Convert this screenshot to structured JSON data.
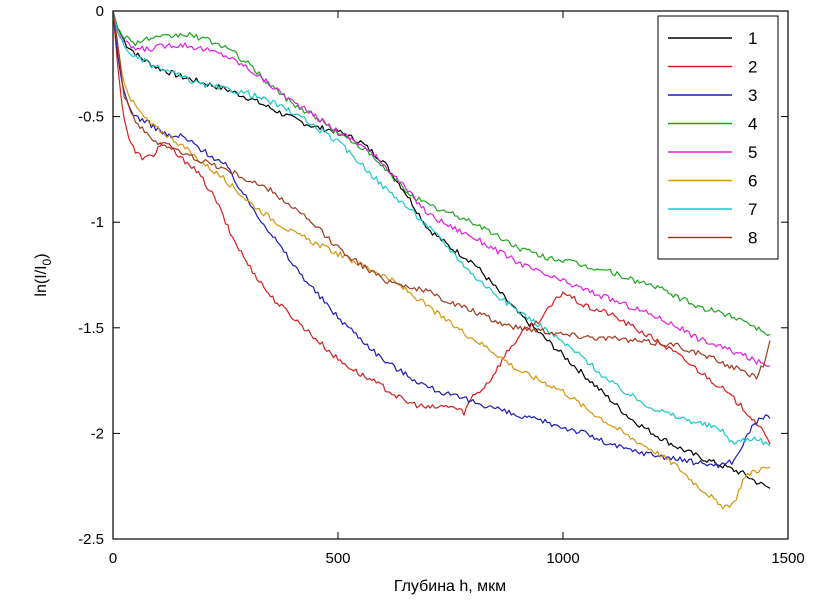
{
  "chart_data": {
    "type": "line",
    "xlabel": "Глубина h, мкм",
    "ylabel_main": "ln(I/I",
    "ylabel_sub": "0",
    "ylabel_close": ")",
    "xlim": [
      0,
      1500
    ],
    "ylim": [
      -2.5,
      0
    ],
    "xticks": [
      0,
      500,
      1000,
      1500
    ],
    "xtick_labels": [
      "0",
      "500",
      "1000",
      "1500"
    ],
    "yticks": [
      0,
      -0.5,
      -1,
      -1.5,
      -2,
      -2.5
    ],
    "ytick_labels": [
      "0",
      "-0.5",
      "-1",
      "-1.5",
      "-2",
      "-2.5"
    ],
    "grid": false,
    "legend_position": "top-right",
    "series": [
      {
        "name": "1",
        "color": "#000000",
        "x": [
          0,
          10,
          30,
          60,
          100,
          150,
          200,
          250,
          300,
          350,
          400,
          450,
          500,
          550,
          600,
          650,
          700,
          750,
          800,
          850,
          900,
          950,
          1000,
          1050,
          1100,
          1150,
          1200,
          1250,
          1300,
          1350,
          1400,
          1430,
          1460
        ],
        "y": [
          0,
          -0.08,
          -0.16,
          -0.22,
          -0.27,
          -0.31,
          -0.34,
          -0.37,
          -0.41,
          -0.46,
          -0.51,
          -0.55,
          -0.57,
          -0.62,
          -0.71,
          -0.86,
          -1.03,
          -1.12,
          -1.19,
          -1.31,
          -1.43,
          -1.53,
          -1.63,
          -1.73,
          -1.83,
          -1.93,
          -2.0,
          -2.06,
          -2.11,
          -2.15,
          -2.19,
          -2.23,
          -2.26
        ]
      },
      {
        "name": "2",
        "color": "#d42020",
        "x": [
          0,
          10,
          20,
          35,
          50,
          70,
          90,
          110,
          130,
          150,
          170,
          200,
          230,
          260,
          300,
          350,
          400,
          450,
          500,
          550,
          600,
          650,
          700,
          750,
          780,
          800,
          820,
          840,
          860,
          880,
          900,
          920,
          950,
          980,
          1000,
          1050,
          1100,
          1150,
          1200,
          1250,
          1300,
          1350,
          1400,
          1430,
          1460
        ],
        "y": [
          0,
          -0.25,
          -0.45,
          -0.6,
          -0.67,
          -0.7,
          -0.68,
          -0.62,
          -0.65,
          -0.7,
          -0.72,
          -0.8,
          -0.9,
          -1.05,
          -1.2,
          -1.35,
          -1.45,
          -1.55,
          -1.65,
          -1.72,
          -1.78,
          -1.85,
          -1.88,
          -1.87,
          -1.9,
          -1.82,
          -1.79,
          -1.74,
          -1.67,
          -1.6,
          -1.55,
          -1.5,
          -1.46,
          -1.38,
          -1.33,
          -1.4,
          -1.43,
          -1.49,
          -1.55,
          -1.62,
          -1.7,
          -1.78,
          -1.88,
          -1.95,
          -2.05
        ]
      },
      {
        "name": "3",
        "color": "#1c1cb4",
        "x": [
          0,
          10,
          20,
          35,
          50,
          70,
          100,
          130,
          150,
          180,
          200,
          250,
          300,
          350,
          400,
          450,
          500,
          550,
          600,
          650,
          700,
          750,
          800,
          850,
          900,
          950,
          1000,
          1050,
          1100,
          1150,
          1200,
          1250,
          1300,
          1350,
          1380,
          1400,
          1420,
          1440,
          1460
        ],
        "y": [
          0,
          -0.2,
          -0.35,
          -0.45,
          -0.5,
          -0.52,
          -0.56,
          -0.6,
          -0.59,
          -0.63,
          -0.66,
          -0.73,
          -0.9,
          -1.05,
          -1.2,
          -1.33,
          -1.45,
          -1.55,
          -1.65,
          -1.72,
          -1.78,
          -1.82,
          -1.85,
          -1.88,
          -1.92,
          -1.94,
          -1.97,
          -2.0,
          -2.05,
          -2.08,
          -2.1,
          -2.12,
          -2.14,
          -2.15,
          -2.13,
          -2.05,
          -1.97,
          -1.92,
          -1.93
        ]
      },
      {
        "name": "4",
        "color": "#1ea51e",
        "x": [
          0,
          10,
          25,
          50,
          80,
          100,
          130,
          160,
          200,
          250,
          300,
          350,
          400,
          450,
          500,
          550,
          600,
          650,
          700,
          750,
          800,
          850,
          900,
          950,
          1000,
          1050,
          1100,
          1150,
          1200,
          1250,
          1300,
          1350,
          1400,
          1430,
          1460
        ],
        "y": [
          0,
          -0.08,
          -0.12,
          -0.15,
          -0.13,
          -0.13,
          -0.12,
          -0.11,
          -0.13,
          -0.17,
          -0.25,
          -0.35,
          -0.44,
          -0.5,
          -0.58,
          -0.64,
          -0.74,
          -0.85,
          -0.92,
          -0.96,
          -1.0,
          -1.06,
          -1.12,
          -1.16,
          -1.18,
          -1.21,
          -1.23,
          -1.27,
          -1.3,
          -1.35,
          -1.4,
          -1.43,
          -1.46,
          -1.5,
          -1.53
        ]
      },
      {
        "name": "5",
        "color": "#e020e0",
        "x": [
          0,
          10,
          25,
          50,
          80,
          100,
          130,
          160,
          200,
          250,
          300,
          350,
          400,
          450,
          500,
          550,
          600,
          650,
          700,
          750,
          800,
          850,
          900,
          950,
          1000,
          1050,
          1100,
          1150,
          1200,
          1250,
          1300,
          1350,
          1400,
          1430,
          1460
        ],
        "y": [
          0,
          -0.1,
          -0.15,
          -0.18,
          -0.18,
          -0.17,
          -0.16,
          -0.16,
          -0.18,
          -0.21,
          -0.27,
          -0.35,
          -0.43,
          -0.5,
          -0.57,
          -0.63,
          -0.72,
          -0.84,
          -0.96,
          -1.02,
          -1.07,
          -1.13,
          -1.19,
          -1.24,
          -1.28,
          -1.32,
          -1.36,
          -1.4,
          -1.44,
          -1.49,
          -1.55,
          -1.59,
          -1.63,
          -1.66,
          -1.68
        ]
      },
      {
        "name": "6",
        "color": "#d4960f",
        "x": [
          0,
          10,
          20,
          40,
          60,
          80,
          100,
          130,
          160,
          200,
          250,
          300,
          350,
          400,
          450,
          500,
          550,
          600,
          650,
          700,
          750,
          800,
          850,
          900,
          950,
          1000,
          1050,
          1100,
          1150,
          1200,
          1250,
          1300,
          1330,
          1350,
          1380,
          1400,
          1420,
          1440,
          1460
        ],
        "y": [
          0,
          -0.15,
          -0.3,
          -0.42,
          -0.48,
          -0.53,
          -0.56,
          -0.6,
          -0.65,
          -0.72,
          -0.8,
          -0.9,
          -0.98,
          -1.05,
          -1.1,
          -1.15,
          -1.2,
          -1.25,
          -1.32,
          -1.4,
          -1.48,
          -1.55,
          -1.62,
          -1.7,
          -1.75,
          -1.8,
          -1.88,
          -1.95,
          -2.02,
          -2.08,
          -2.15,
          -2.25,
          -2.3,
          -2.35,
          -2.33,
          -2.22,
          -2.18,
          -2.17,
          -2.16
        ]
      },
      {
        "name": "7",
        "color": "#1cc8c8",
        "x": [
          0,
          10,
          25,
          50,
          80,
          100,
          130,
          160,
          200,
          250,
          300,
          350,
          400,
          450,
          500,
          550,
          600,
          650,
          700,
          750,
          800,
          850,
          900,
          950,
          1000,
          1050,
          1100,
          1150,
          1200,
          1250,
          1300,
          1350,
          1380,
          1400,
          1430,
          1460
        ],
        "y": [
          0,
          -0.1,
          -0.17,
          -0.22,
          -0.25,
          -0.27,
          -0.29,
          -0.32,
          -0.35,
          -0.37,
          -0.39,
          -0.43,
          -0.48,
          -0.55,
          -0.62,
          -0.72,
          -0.83,
          -0.92,
          -1.02,
          -1.13,
          -1.25,
          -1.34,
          -1.42,
          -1.49,
          -1.57,
          -1.65,
          -1.75,
          -1.82,
          -1.88,
          -1.92,
          -1.95,
          -1.98,
          -2.05,
          -2.03,
          -2.02,
          -2.06
        ]
      },
      {
        "name": "8",
        "color": "#a03a1e",
        "x": [
          0,
          10,
          25,
          50,
          80,
          100,
          130,
          160,
          200,
          250,
          300,
          350,
          400,
          450,
          500,
          550,
          600,
          650,
          700,
          750,
          800,
          850,
          900,
          950,
          1000,
          1050,
          1100,
          1150,
          1200,
          1250,
          1300,
          1350,
          1400,
          1430,
          1450,
          1460
        ],
        "y": [
          0,
          -0.15,
          -0.4,
          -0.52,
          -0.6,
          -0.62,
          -0.65,
          -0.68,
          -0.71,
          -0.75,
          -0.8,
          -0.85,
          -0.93,
          -1.02,
          -1.12,
          -1.2,
          -1.27,
          -1.3,
          -1.33,
          -1.38,
          -1.42,
          -1.47,
          -1.5,
          -1.51,
          -1.53,
          -1.54,
          -1.55,
          -1.56,
          -1.57,
          -1.58,
          -1.62,
          -1.66,
          -1.71,
          -1.73,
          -1.66,
          -1.56
        ]
      }
    ]
  }
}
